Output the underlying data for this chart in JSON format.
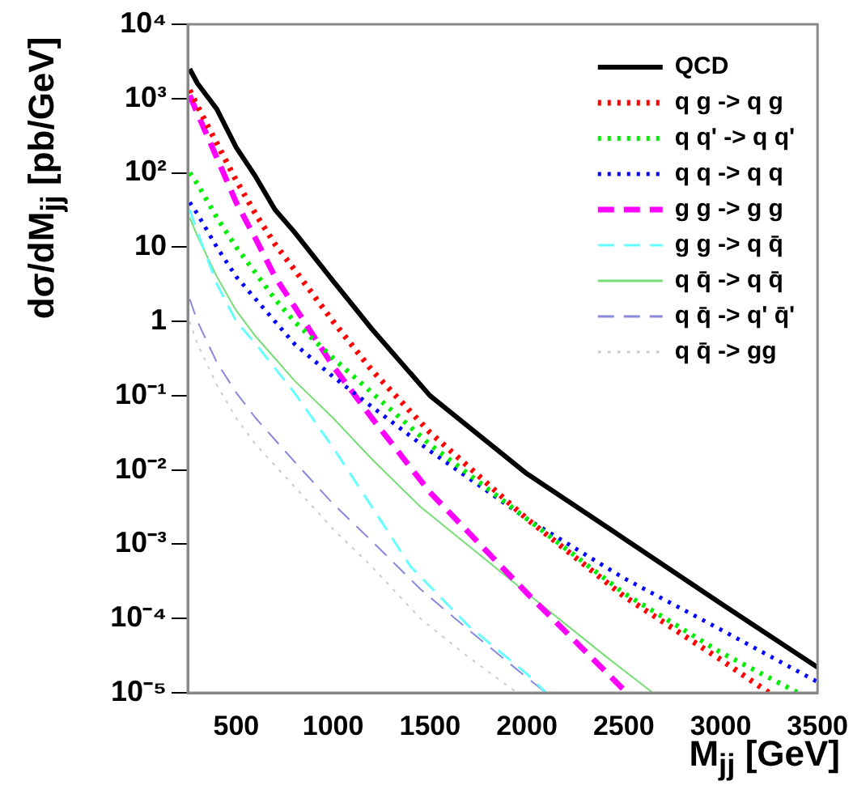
{
  "chart_data": {
    "type": "line",
    "xlabel": "M$_{jj}$ [GeV]",
    "ylabel": "dσ/dM$_{jj}$ [pb/GeV]",
    "log": "y",
    "grid": false,
    "legend": "top right",
    "marker": "none",
    "xlim": [
      250,
      3500
    ],
    "xticks": [
      500,
      1000,
      1500,
      2000,
      2500,
      3000,
      3500
    ],
    "ylim": [
      1e-05,
      10000
    ],
    "yticks": [
      {
        "value": 1e-05,
        "label": "10⁻⁵"
      },
      {
        "value": 0.0001,
        "label": "10⁻⁴"
      },
      {
        "value": 0.001,
        "label": "10⁻³"
      },
      {
        "value": 0.01,
        "label": "10⁻²"
      },
      {
        "value": 0.1,
        "label": "10⁻¹"
      },
      1,
      10,
      {
        "value": 100,
        "label": "10²"
      },
      {
        "value": 1000,
        "label": "10³"
      },
      {
        "value": 10000,
        "label": "10⁴"
      }
    ],
    "series": [
      {
        "name": "QCD",
        "color": "#000000",
        "line_style": "solid",
        "x": [
          260,
          300,
          400,
          500,
          600,
          700,
          800,
          1000,
          1200,
          1500,
          2000,
          2500,
          3000,
          3500
        ],
        "values": [
          2500,
          1600,
          720,
          220,
          89,
          32,
          16,
          3.5,
          0.79,
          0.1,
          0.0089,
          0.0012,
          0.00016,
          2.2e-05
        ]
      },
      {
        "name": "q g -> q g",
        "color": "#ff0000",
        "line_style": "dotted",
        "x": [
          260,
          300,
          400,
          500,
          600,
          700,
          800,
          1000,
          1200,
          1500,
          2000,
          2500,
          3000,
          3250
        ],
        "values": [
          1300,
          790,
          250,
          79,
          28,
          11,
          5,
          1,
          0.22,
          0.032,
          0.0022,
          0.0002,
          2.8e-05,
          1e-05
        ]
      },
      {
        "name": "q q' -> q q'",
        "color": "#00ee00",
        "line_style": "dotted",
        "x": [
          260,
          300,
          400,
          500,
          600,
          700,
          800,
          1000,
          1200,
          1500,
          2000,
          2500,
          3000,
          3400
        ],
        "values": [
          100,
          71,
          25,
          10,
          4.5,
          2,
          1,
          0.32,
          0.11,
          0.022,
          0.0022,
          0.00022,
          3.5e-05,
          1e-05
        ]
      },
      {
        "name": "q q -> q q",
        "color": "#0000ff",
        "line_style": "dotted",
        "x": [
          260,
          300,
          400,
          500,
          600,
          700,
          800,
          1000,
          1200,
          1500,
          2000,
          2500,
          3000,
          3500
        ],
        "values": [
          40,
          28,
          10,
          4,
          2,
          1,
          0.5,
          0.18,
          0.071,
          0.018,
          0.0022,
          0.00035,
          7.1e-05,
          1.4e-05
        ]
      },
      {
        "name": "g g -> g g",
        "color": "#ff00ff",
        "line_style": "dashed",
        "x": [
          260,
          300,
          400,
          500,
          600,
          700,
          800,
          1000,
          1200,
          1500,
          2000,
          2500
        ],
        "values": [
          1100,
          630,
          160,
          40,
          13,
          4,
          1.6,
          0.25,
          0.05,
          0.005,
          0.00022,
          1.1e-05
        ]
      },
      {
        "name": "g g -> q q̄",
        "color": "#66ffff",
        "line_style": "dashed",
        "x": [
          260,
          300,
          400,
          500,
          600,
          800,
          1000,
          1200,
          1400,
          1700,
          2000,
          2100
        ],
        "values": [
          32,
          16,
          3.2,
          1,
          0.5,
          0.11,
          0.02,
          0.0032,
          0.0005,
          7.9e-05,
          1.8e-05,
          1e-05
        ]
      },
      {
        "name": "q q̄ -> q q̄",
        "color": "#77dd77",
        "line_style": "solid",
        "x": [
          260,
          300,
          400,
          500,
          600,
          800,
          1000,
          1200,
          1450,
          2000,
          2400,
          2650
        ],
        "values": [
          25,
          14,
          4,
          1.4,
          0.63,
          0.16,
          0.05,
          0.014,
          0.0032,
          0.00022,
          3.2e-05,
          1e-05
        ]
      },
      {
        "name": "q q̄ -> q' q̄'",
        "color": "#8888dd",
        "line_style": "dashed",
        "x": [
          260,
          300,
          400,
          500,
          600,
          800,
          1000,
          1200,
          1450,
          1700,
          2000,
          2100
        ],
        "values": [
          2,
          1,
          0.28,
          0.11,
          0.05,
          0.013,
          0.0035,
          0.0011,
          0.00025,
          7e-05,
          1.6e-05,
          1e-05
        ]
      },
      {
        "name": "q q̄ -> gg",
        "color": "#cccccc",
        "line_style": "dotted",
        "x": [
          260,
          300,
          400,
          500,
          600,
          800,
          1000,
          1200,
          1450,
          1700,
          1950
        ],
        "values": [
          1,
          0.5,
          0.14,
          0.05,
          0.022,
          0.006,
          0.0016,
          0.0005,
          0.0001,
          3e-05,
          1e-05
        ]
      }
    ]
  }
}
